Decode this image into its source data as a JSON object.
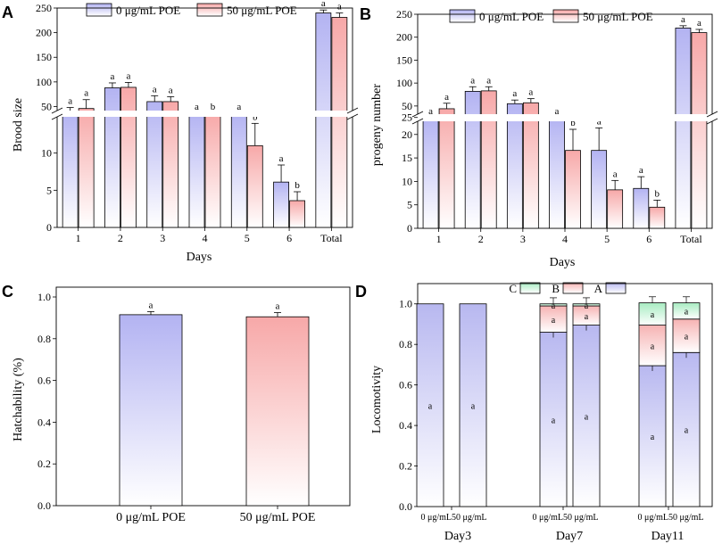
{
  "colors": {
    "series0_top": "#b3b3f2",
    "series0_bottom": "#ffffff",
    "series1_top": "#f7a8a8",
    "series1_bottom": "#ffffff",
    "stack_A": "#b8b8f0",
    "stack_B": "#f6b3b3",
    "stack_C": "#a8ecc2",
    "break_band": "#ffffff"
  },
  "panels": {
    "A": {
      "letter": "A"
    },
    "B": {
      "letter": "B"
    },
    "C": {
      "letter": "C"
    },
    "D": {
      "letter": "D"
    }
  },
  "chart_data": [
    {
      "panel": "A",
      "type": "bar",
      "title": "",
      "xlabel": "Days",
      "ylabel": "Brood size",
      "categories": [
        "1",
        "2",
        "3",
        "4",
        "5",
        "6",
        "Total"
      ],
      "legend": [
        "0 μg/mL POE",
        "50 μg/mL POE"
      ],
      "series": [
        {
          "name": "0 μg/mL POE",
          "values": [
            36,
            88,
            60,
            32,
            20,
            6.1,
            240
          ],
          "errors": [
            12,
            10,
            12,
            5,
            4,
            2.3,
            6
          ],
          "labels": [
            "a",
            "a",
            "a",
            "a",
            "a",
            "a",
            "a"
          ]
        },
        {
          "name": "50 μg/mL POE",
          "values": [
            46,
            89,
            60,
            21,
            11,
            3.6,
            231
          ],
          "errors": [
            18,
            10,
            10,
            8,
            3,
            1.2,
            9
          ],
          "labels": [
            "a",
            "a",
            "a",
            "b",
            "b",
            "b",
            "a"
          ]
        }
      ],
      "axis_break": [
        15,
        40
      ],
      "ylim_lower": [
        0,
        15
      ],
      "ylim_upper": [
        40,
        250
      ],
      "yticks_lower": [
        "0",
        "5",
        "10"
      ],
      "yticks_upper": [
        "50",
        "100",
        "150",
        "200",
        "250"
      ]
    },
    {
      "panel": "B",
      "type": "bar",
      "title": "",
      "xlabel": "Days",
      "ylabel": "progeny number",
      "categories": [
        "1",
        "2",
        "3",
        "4",
        "5",
        "6",
        "Total"
      ],
      "legend": [
        "0 μg/mL POE",
        "50 μg/mL POE"
      ],
      "series": [
        {
          "name": "0 μg/mL POE",
          "values": [
            32,
            82,
            55,
            30,
            16.6,
            8.5,
            220
          ],
          "errors": [
            6,
            10,
            8,
            4,
            4.8,
            2.5,
            5
          ],
          "labels": [
            "a",
            "a",
            "a",
            "a",
            "a",
            "a",
            "a"
          ]
        },
        {
          "name": "50 μg/mL POE",
          "values": [
            44,
            83,
            57,
            16.6,
            8.2,
            4.5,
            210
          ],
          "errors": [
            12,
            9,
            9,
            4.5,
            2,
            1.5,
            7
          ],
          "labels": [
            "a",
            "a",
            "a",
            "b",
            "a",
            "b",
            "a"
          ]
        }
      ],
      "axis_break": [
        23,
        40
      ],
      "ylim_lower": [
        0,
        23
      ],
      "ylim_upper": [
        40,
        250
      ],
      "yticks_lower": [
        "0",
        "5",
        "10",
        "15",
        "20"
      ],
      "yticks_upper": [
        "25",
        "50",
        "100",
        "150",
        "200",
        "250"
      ]
    },
    {
      "panel": "C",
      "type": "bar",
      "title": "",
      "xlabel": "",
      "ylabel": "Hatchability (%)",
      "categories": [
        "0 μg/mL POE",
        "50 μg/mL POE"
      ],
      "values": [
        0.915,
        0.905
      ],
      "errors": [
        0.015,
        0.02
      ],
      "labels": [
        "a",
        "a"
      ],
      "ylim": [
        0,
        1.0
      ],
      "yticks": [
        "0.0",
        "0.2",
        "0.4",
        "0.6",
        "0.8",
        "1.0"
      ]
    },
    {
      "panel": "D",
      "type": "bar",
      "stacked": true,
      "title": "",
      "xlabel": "",
      "ylabel": "Locomotivity",
      "legend": [
        "C",
        "B",
        "A"
      ],
      "groups": [
        "Day3",
        "Day7",
        "Day11"
      ],
      "bar_labels": [
        "0 μg/mL",
        "50 μg/mL"
      ],
      "stacks": [
        {
          "group": "Day3",
          "bar": "0 μg/mL",
          "A": 1.0,
          "B": 0.0,
          "C": 0.0
        },
        {
          "group": "Day3",
          "bar": "50 μg/mL",
          "A": 1.0,
          "B": 0.0,
          "C": 0.0
        },
        {
          "group": "Day7",
          "bar": "0 μg/mL",
          "A": 0.86,
          "B": 0.13,
          "C": 0.01
        },
        {
          "group": "Day7",
          "bar": "50 μg/mL",
          "A": 0.895,
          "B": 0.095,
          "C": 0.01
        },
        {
          "group": "Day11",
          "bar": "0 μg/mL",
          "A": 0.695,
          "B": 0.2,
          "C": 0.11
        },
        {
          "group": "Day11",
          "bar": "50 μg/mL",
          "A": 0.76,
          "B": 0.165,
          "C": 0.08
        }
      ],
      "ylim": [
        0,
        1.1
      ],
      "yticks": [
        "0.0",
        "0.2",
        "0.4",
        "0.6",
        "0.8",
        "1.0"
      ],
      "significance_label": "a"
    }
  ]
}
